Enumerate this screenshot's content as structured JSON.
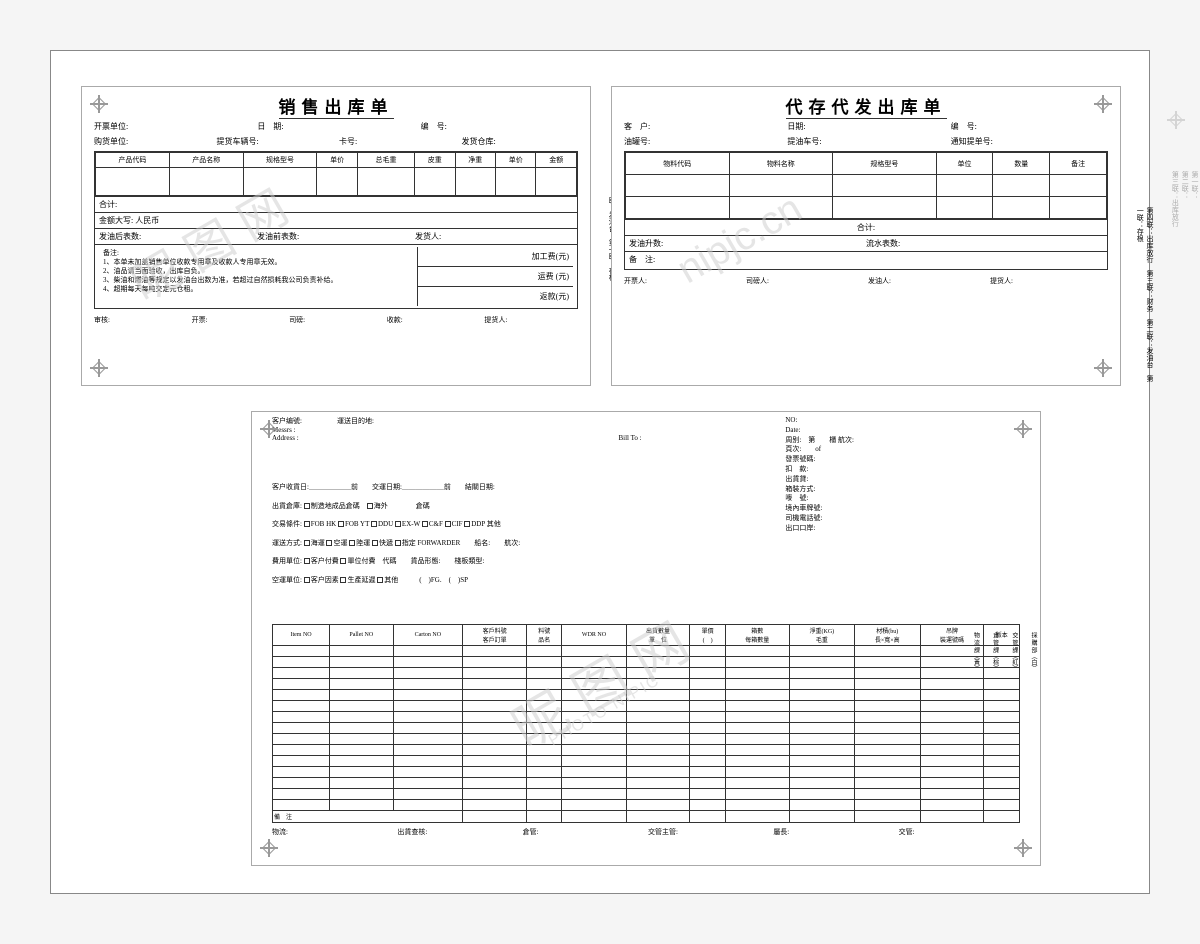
{
  "form1": {
    "title": "销售出库单",
    "fields": {
      "kp": "开票单位:",
      "rq": "日　期:",
      "bh": "编　号:",
      "gh": "购货单位:",
      "thc": "提货车辆号:",
      "kh": "卡号:",
      "fhck": "发货仓库:"
    },
    "cols": [
      "产品代码",
      "产品名称",
      "规格型号",
      "单价",
      "总毛重",
      "皮重",
      "净重",
      "单价",
      "金额"
    ],
    "total_label": "合计:",
    "rmb": "金额大写: 人民币",
    "meter_row": {
      "a": "发油后表数:",
      "b": "发油前表数:",
      "c": "发货人:"
    },
    "notes_label": "备注:",
    "notes": [
      "1、本单未加盖销售单位收款专用章及收款人专用章无效。",
      "2、油品请当面验收，出库自负。",
      "3、柴油和燃油等规定以发油台出数为准，若超过自然损耗我公司负责补给。",
      "4、超期每天每吨交定元仓租。"
    ],
    "fees": {
      "jg": "加工费(元)",
      "yf": "运费 (元)",
      "hk": "返款(元)"
    },
    "sigs": [
      "审核:",
      "开票:",
      "司磅:",
      "收款:",
      "提货人:"
    ],
    "copies": [
      "第一联：存根",
      "第二联：发油台",
      "第三联：统计",
      "第四联：财务",
      "第五联：出库放行"
    ]
  },
  "form2": {
    "title": "代存代发出库单",
    "fields": {
      "kh": "客　户:",
      "rq": "日期:",
      "bh": "编　号:",
      "yg": "油罐号:",
      "tyc": "提油车号:",
      "tzd": "通知提单号:"
    },
    "cols": [
      "物料代码",
      "物料名称",
      "规格型号",
      "单位",
      "数量",
      "备注"
    ],
    "total": "合计:",
    "meter": {
      "a": "发油升数:",
      "b": "流水表数:"
    },
    "bz": "备　注:",
    "sigs": [
      "开票人:",
      "司磅人:",
      "发油人:",
      "提货人:"
    ],
    "copies": [
      "第一联：存根",
      "第二联：发油台",
      "第三联：财务",
      "第四联：出库放行"
    ]
  },
  "form3": {
    "head": {
      "khbh": "客户编號:",
      "ysmd": "運送目的地:",
      "messrs": "Messrs :",
      "addr": "Address :",
      "billto": "Bill To :"
    },
    "right": {
      "no": "NO:",
      "date": "Date:",
      "zh": "周别:　第　　櫃 航次:",
      "ys": "頁次:　　of",
      "fph": "發票號碼:",
      "kk": "扣　款:",
      "cbd": "出貨貸:",
      "xzfs": "箱裝方式:",
      "mh": "嘜　號:",
      "jndh": "境內車牌號:",
      "skjh": "司機電話號:",
      "ckk": "出口口岸:"
    },
    "mid": {
      "l1": [
        "客户收貨日:＿＿＿＿＿＿前",
        "交運日期:＿＿＿＿＿＿前",
        "結關日期:"
      ],
      "l2_label": "出貨倉庫:",
      "l2_opts": [
        "制造地成品倉碼",
        "海外"
      ],
      "l2_b": "倉碼",
      "l3_label": "交易條件:",
      "l3_opts": [
        "FOB HK",
        "FOB YT",
        "DDU",
        "EX-W",
        "C&F",
        "CIF",
        "DDP 其他"
      ],
      "l4_label": "運送方式:",
      "l4_opts": [
        "海運",
        "空運",
        "陸運",
        "快遞",
        "指定 FORWARDER"
      ],
      "l4_b": [
        "船名:",
        "航次:"
      ],
      "l5_label": "費用單位:",
      "l5_opts": [
        "客户付費",
        "單位付費　代碼"
      ],
      "l5_b": [
        "貨品形態:",
        "棧板類型:"
      ],
      "l6_label": "空運單位:",
      "l6_opts": [
        "客户因素",
        "生產延遲",
        "其他"
      ],
      "l6_b": "(　)FG.　(　)SP"
    },
    "cols": [
      "Item NO",
      "Pallet NO",
      "Carton NO",
      "客戶料號\n客戶訂單",
      "料號\n品名",
      "WDR NO",
      "出貨數量\n單　位",
      "單價\n(　)",
      "箱數\n每箱數量",
      "淨重(KG)\n毛重",
      "材積(bu)\n長×寬×高",
      "吊牌\n裝運號碼",
      "版本"
    ],
    "empty_rows": 16,
    "row_bz": "備　注",
    "vlabels": [
      "採 購 部（白）",
      "交 管 課（紅）",
      "倉 管 課（棕）",
      "物 流 課（黃）"
    ],
    "foot": [
      "物流:",
      "出貨查核:",
      "倉管:",
      "交管主管:",
      "屬長:",
      "交管:"
    ]
  },
  "watermark": {
    "brand": "昵 图 网",
    "url": "nipjc.cn",
    "ex": "PHOTO NIPIC"
  }
}
